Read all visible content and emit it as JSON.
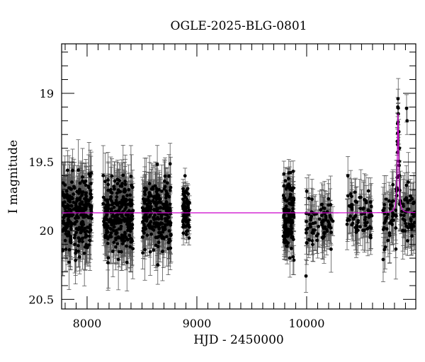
{
  "chart_data": {
    "type": "scatter",
    "title": "OGLE-2025-BLG-0801",
    "xlabel": "HJD - 2450000",
    "ylabel": "I magnitude",
    "xlim": [
      7768,
      10994
    ],
    "ylim": [
      20.57,
      18.64
    ],
    "y_inverted": true,
    "grid": false,
    "legend": null,
    "x_ticks": [
      8000,
      9000,
      10000
    ],
    "x_tick_labels": [
      "8000",
      "9000",
      "10000"
    ],
    "x_minor_step": 100,
    "y_ticks": [
      19,
      19.5,
      20,
      20.5
    ],
    "y_tick_labels": [
      "19",
      "19.5",
      "20",
      "20.5"
    ],
    "y_minor_step": 0.1,
    "colors": {
      "points": "#000000",
      "errorbars": "#555555",
      "model": "#cc00cc",
      "frame": "#000000"
    },
    "model": {
      "name": "microlensing model",
      "baseline_mag": 19.87,
      "peak_time": 10832,
      "peak_mag": 19.14,
      "timescale_days": 12
    },
    "seasons": [
      {
        "t_start": 7775,
        "t_end": 8045,
        "mag_center": 19.88,
        "mag_spread": 0.22,
        "err": 0.17,
        "n": 260
      },
      {
        "t_start": 8142,
        "t_end": 8420,
        "mag_center": 19.88,
        "mag_spread": 0.22,
        "err": 0.17,
        "n": 260
      },
      {
        "t_start": 8504,
        "t_end": 8768,
        "mag_center": 19.88,
        "mag_spread": 0.22,
        "err": 0.16,
        "n": 240
      },
      {
        "t_start": 8871,
        "t_end": 8935,
        "mag_center": 19.87,
        "mag_spread": 0.2,
        "err": 0.06,
        "n": 70
      },
      {
        "t_start": 9787,
        "t_end": 9884,
        "mag_center": 19.9,
        "mag_spread": 0.22,
        "err": 0.1,
        "n": 140
      },
      {
        "t_start": 9994,
        "t_end": 10239,
        "mag_center": 19.92,
        "mag_spread": 0.15,
        "err": 0.15,
        "n": 80
      },
      {
        "t_start": 10368,
        "t_end": 10594,
        "mag_center": 19.9,
        "mag_spread": 0.15,
        "err": 0.15,
        "n": 70
      },
      {
        "t_start": 10690,
        "t_end": 10994,
        "mag_center": 19.9,
        "mag_spread": 0.16,
        "err": 0.16,
        "n": 110
      }
    ],
    "notable_points": [
      {
        "t": 10832,
        "mag": 19.04,
        "err": 0.07
      },
      {
        "t": 10830,
        "mag": 19.1,
        "err": 0.07
      },
      {
        "t": 10835,
        "mag": 19.15,
        "err": 0.08
      },
      {
        "t": 10828,
        "mag": 19.22,
        "err": 0.08
      },
      {
        "t": 10840,
        "mag": 19.28,
        "err": 0.09
      },
      {
        "t": 10825,
        "mag": 19.35,
        "err": 0.1
      },
      {
        "t": 10845,
        "mag": 19.4,
        "err": 0.1
      },
      {
        "t": 10910,
        "mag": 19.11,
        "err": 0.1
      },
      {
        "t": 10915,
        "mag": 19.2,
        "err": 0.1
      },
      {
        "t": 9994,
        "mag": 20.33,
        "err": 0.12
      }
    ]
  }
}
